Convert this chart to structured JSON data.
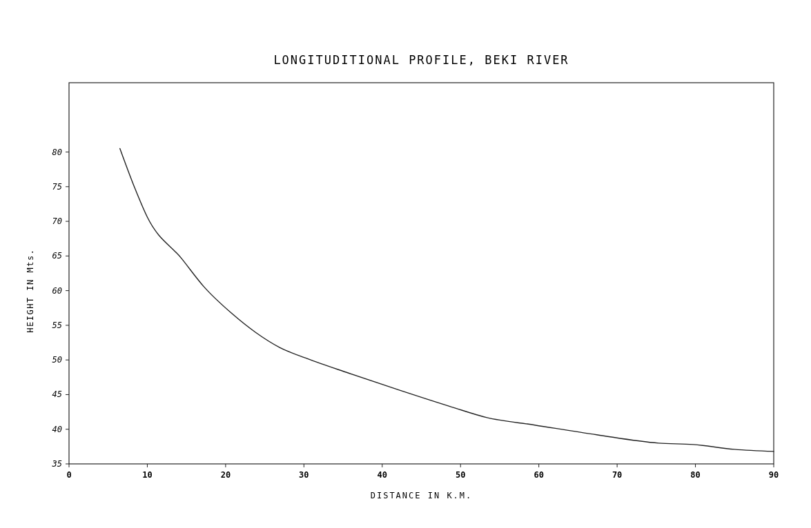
{
  "chart_data": {
    "type": "line",
    "title": "LONGITUDITIONAL PROFILE, BEKI RIVER",
    "xlabel": "DISTANCE IN K.M.",
    "ylabel": "HEIGHT IN Mts.",
    "series": [
      {
        "color": "#222222",
        "x": [
          6.5,
          8.4,
          10,
          14.4,
          17.2,
          20.8,
          23.8,
          26.9,
          30.4,
          35.7,
          42.3,
          48.9,
          53.3,
          59.5,
          67.4,
          75.3,
          79.7,
          85,
          90
        ],
        "values": [
          80.5,
          74.8,
          70.6,
          64.6,
          60.6,
          56.7,
          54,
          51.8,
          50.2,
          48.1,
          45.6,
          43.2,
          41.7,
          40.6,
          39.2,
          38,
          37.8,
          37.1,
          36.8
        ]
      }
    ],
    "xlim": [
      0,
      90
    ],
    "xticks": [
      0,
      10,
      20,
      30,
      40,
      50,
      60,
      70,
      80,
      90
    ],
    "ylim": [
      35,
      90
    ],
    "yticks": [
      35,
      40,
      45,
      50,
      55,
      60,
      65,
      70,
      75,
      80
    ],
    "grid": false,
    "marker": "none",
    "line_style": "solid"
  }
}
